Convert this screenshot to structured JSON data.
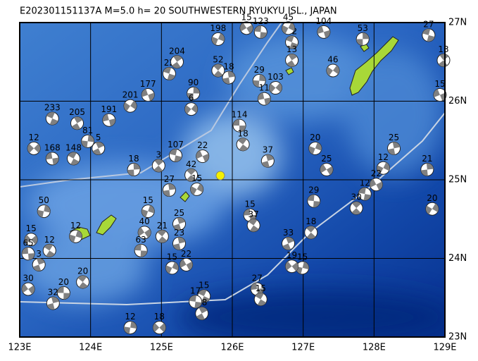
{
  "map": {
    "title": "E202301151137A  M=5.0  h= 20  SOUTHWESTERN RYUKYU ISL., JAPAN",
    "xlim": [
      123,
      129
    ],
    "ylim": [
      23,
      27
    ],
    "xticks": [
      {
        "value": 123,
        "label": "123E"
      },
      {
        "value": 124,
        "label": "124E"
      },
      {
        "value": 125,
        "label": "125E"
      },
      {
        "value": 126,
        "label": "126E"
      },
      {
        "value": 127,
        "label": "127E"
      },
      {
        "value": 128,
        "label": "128E"
      },
      {
        "value": 129,
        "label": "129E"
      }
    ],
    "yticks": [
      {
        "value": 23,
        "label": "23N"
      },
      {
        "value": 24,
        "label": "24N"
      },
      {
        "value": 25,
        "label": "25N"
      },
      {
        "value": 26,
        "label": "26N"
      },
      {
        "value": 27,
        "label": "27N"
      }
    ],
    "events": {
      "lon": [
        126.1,
        126.15,
        126.5,
        127.17,
        127.33,
        127.15,
        127.11,
        128.28,
        128.13,
        128.03,
        127.87,
        127.75,
        128.75,
        128.82,
        128.93,
        128.77,
        128.98,
        127.84,
        127.42,
        127.29,
        126.84,
        126.84,
        126.38,
        126.61,
        126.45,
        125.6,
        125.57,
        124.56,
        124.97,
        126.35,
        126.4,
        126.79,
        126.99,
        126.84,
        126.25,
        126.3,
        125.25,
        124.81,
        124.76,
        124.71,
        125.01,
        125.25,
        125.15,
        125.35,
        125.48,
        125.42,
        125.11,
        125.5,
        125.58,
        125.2,
        124.96,
        124.61,
        124.56,
        124.81,
        125.11,
        125.22,
        125.45,
        125.42,
        124.26,
        123.46,
        123.81,
        123.96,
        123.2,
        123.46,
        123.76,
        124.11,
        123.34,
        123.16,
        123.12,
        123.42,
        123.27,
        123.79,
        123.12,
        123.62,
        123.89,
        123.47,
        125.8,
        126.2,
        126.4,
        125.8,
        125.95,
        126.79
      ],
      "lat": [
        25.69,
        25.45,
        25.24,
        25.4,
        25.13,
        24.73,
        24.33,
        25.4,
        25.15,
        24.94,
        24.82,
        24.64,
        25.13,
        24.63,
        26.08,
        26.84,
        26.52,
        26.79,
        26.39,
        26.88,
        26.75,
        26.52,
        26.26,
        26.17,
        26.03,
        23.52,
        23.3,
        23.12,
        23.12,
        23.61,
        23.48,
        24.19,
        23.88,
        23.9,
        24.55,
        24.42,
        24.44,
        24.6,
        24.33,
        24.1,
        24.28,
        24.19,
        23.88,
        23.92,
        23.45,
        25.06,
        24.87,
        24.88,
        25.3,
        25.31,
        25.18,
        25.13,
        25.94,
        26.08,
        26.35,
        26.5,
        26.1,
        25.9,
        25.76,
        25.78,
        25.72,
        25.49,
        25.4,
        25.27,
        25.27,
        25.4,
        24.6,
        24.24,
        24.06,
        24.1,
        23.92,
        24.28,
        23.61,
        23.56,
        23.7,
        23.43,
        26.79,
        26.93,
        26.88,
        26.39,
        26.3,
        26.93
      ],
      "depth": [
        114,
        18,
        37,
        20,
        25,
        29,
        18,
        25,
        12,
        22,
        12,
        30,
        21,
        20,
        15,
        27,
        13,
        53,
        46,
        104,
        22,
        13,
        29,
        103,
        11,
        15,
        18,
        12,
        18,
        27,
        15,
        33,
        15,
        19,
        15,
        37,
        25,
        15,
        40,
        63,
        21,
        23,
        15,
        22,
        17,
        42,
        27,
        15,
        22,
        107,
        3,
        18,
        201,
        177,
        22,
        204,
        90,
        6,
        191,
        233,
        205,
        81,
        12,
        168,
        148,
        5,
        50,
        15,
        65,
        12,
        3,
        12,
        30,
        20,
        20,
        32,
        198,
        15,
        123,
        52,
        18,
        45
      ]
    }
  }
}
